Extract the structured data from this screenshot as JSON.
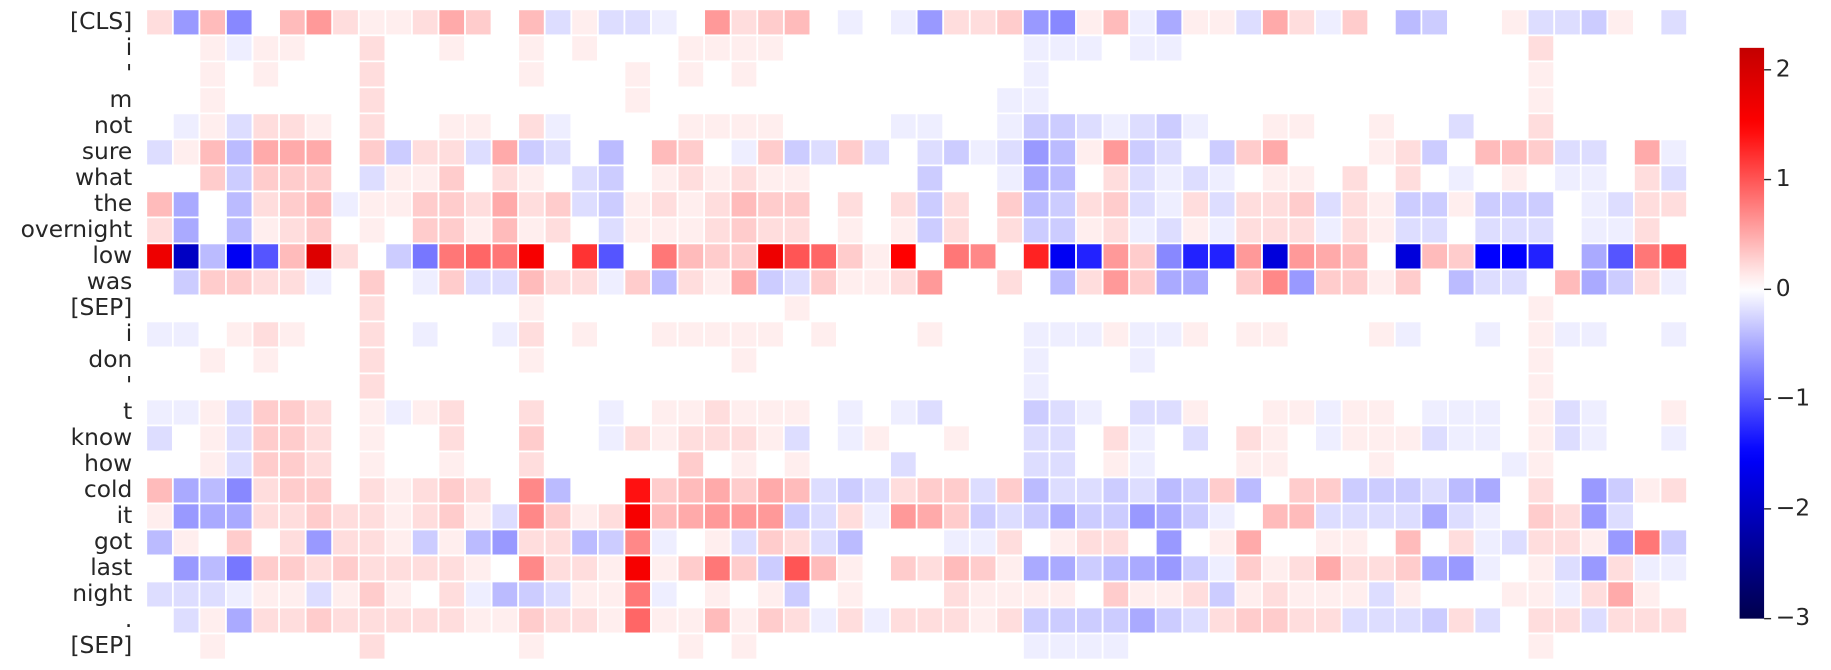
{
  "chart_data": {
    "type": "heatmap",
    "rows": [
      "[CLS]",
      "i",
      "'",
      "m",
      "not",
      "sure",
      "what",
      "the",
      "overnight",
      "low",
      "was",
      "[SEP]",
      "i",
      "don",
      "'",
      "t",
      "know",
      "how",
      "cold",
      "it",
      "got",
      "last",
      "night",
      ".",
      "[SEP]"
    ],
    "values": [
      [
        0.2,
        -0.6,
        0.4,
        -0.7,
        0,
        0.4,
        0.6,
        0.2,
        0.1,
        0.1,
        0.2,
        0.5,
        0.3,
        0,
        0.4,
        -0.2,
        0.1,
        -0.2,
        -0.2,
        -0.1,
        0,
        0.6,
        0.2,
        0.3,
        0.4,
        0,
        -0.1,
        0,
        -0.1,
        -0.6,
        0.2,
        0.2,
        0.3,
        -0.6,
        -0.7,
        0.1,
        0.4,
        -0.1,
        -0.5,
        0.1,
        0.1,
        -0.2,
        0.5,
        0.2,
        -0.1,
        0.3,
        0,
        -0.4,
        -0.3,
        0,
        0,
        0.1,
        -0.2,
        -0.2,
        -0.3,
        0.1,
        0,
        -0.2
      ],
      [
        0,
        0,
        0.1,
        -0.1,
        0.1,
        0.1,
        0,
        0,
        0.2,
        0,
        0,
        0.1,
        0,
        0,
        0.1,
        0,
        0.1,
        0,
        0,
        0,
        0.1,
        0.1,
        0.1,
        0.1,
        0,
        0,
        0,
        0,
        0,
        0,
        0,
        0,
        0,
        -0.1,
        -0.1,
        -0.1,
        0,
        -0.1,
        -0.1,
        0,
        0,
        0,
        0,
        0,
        0,
        0,
        0,
        0,
        0,
        0,
        0,
        0,
        0.2,
        0,
        0,
        0,
        0,
        0
      ],
      [
        0,
        0,
        0.1,
        0,
        0.1,
        0,
        0,
        0,
        0.2,
        0,
        0,
        0,
        0,
        0,
        0.1,
        0,
        0,
        0,
        0.1,
        0,
        0.1,
        0,
        0.1,
        0,
        0,
        0,
        0,
        0,
        0,
        0,
        0,
        0,
        0,
        -0.1,
        0,
        0,
        0,
        0,
        0,
        0,
        0,
        0,
        0,
        0,
        0,
        0,
        0,
        0,
        0,
        0,
        0,
        0,
        0.1,
        0,
        0,
        0,
        0,
        0
      ],
      [
        0,
        0,
        0.1,
        0,
        0,
        0,
        0,
        0,
        0.2,
        0,
        0,
        0,
        0,
        0,
        0,
        0,
        0,
        0,
        0.1,
        0,
        0,
        0,
        0,
        0,
        0,
        0,
        0,
        0,
        0,
        0,
        0,
        0,
        -0.1,
        -0.1,
        0,
        0,
        0,
        0,
        0,
        0,
        0,
        0,
        0,
        0,
        0,
        0,
        0,
        0,
        0,
        0,
        0,
        0,
        0.1,
        0,
        0,
        0,
        0,
        0
      ],
      [
        0,
        -0.1,
        0.1,
        -0.2,
        0.2,
        0.2,
        0.1,
        0,
        0.2,
        0,
        0,
        0.1,
        0.1,
        0,
        0.2,
        -0.1,
        0,
        0,
        0,
        0,
        0.1,
        0.1,
        0.1,
        0.1,
        0,
        0,
        0,
        0,
        -0.1,
        -0.1,
        0,
        0,
        -0.1,
        -0.3,
        -0.3,
        -0.2,
        -0.1,
        -0.2,
        -0.3,
        -0.1,
        0,
        0,
        0.1,
        0.1,
        0,
        0,
        0.1,
        0,
        0,
        -0.2,
        0,
        0,
        0.2,
        0,
        0,
        0,
        0,
        0
      ],
      [
        -0.2,
        0.1,
        0.4,
        -0.4,
        0.5,
        0.5,
        0.5,
        0,
        0.3,
        -0.3,
        0.2,
        0.2,
        -0.2,
        0.5,
        -0.3,
        -0.2,
        0,
        -0.4,
        0,
        0.4,
        0.3,
        0,
        -0.1,
        0.3,
        -0.3,
        -0.2,
        0.3,
        -0.2,
        0,
        -0.2,
        -0.3,
        -0.1,
        -0.2,
        -0.6,
        -0.4,
        0.1,
        0.6,
        -0.3,
        -0.2,
        0,
        -0.3,
        0.3,
        0.5,
        0,
        0,
        0,
        0.1,
        0.2,
        -0.3,
        0,
        0.4,
        0.4,
        0.3,
        -0.2,
        -0.2,
        0,
        0.5,
        -0.1
      ],
      [
        0,
        0,
        0.3,
        -0.3,
        0.3,
        0.3,
        0.3,
        0,
        -0.2,
        0.1,
        0.1,
        0.3,
        0,
        0.2,
        0.1,
        0,
        -0.2,
        -0.3,
        0,
        0.1,
        0.2,
        0.1,
        0.2,
        0.1,
        0.1,
        0,
        0,
        0,
        0,
        -0.3,
        0,
        0,
        -0.1,
        -0.5,
        -0.4,
        0,
        0.2,
        -0.2,
        -0.1,
        -0.2,
        -0.1,
        0,
        0.1,
        0.1,
        0,
        0.2,
        0,
        0.2,
        0,
        -0.1,
        0,
        0.1,
        0,
        -0.1,
        -0.1,
        0,
        0.2,
        -0.2
      ],
      [
        0.4,
        -0.5,
        0,
        -0.4,
        0.2,
        0.3,
        0.4,
        -0.1,
        0.1,
        0.1,
        0.3,
        0.3,
        0.2,
        0.5,
        0.2,
        0.3,
        -0.2,
        -0.3,
        0.1,
        0.2,
        0.1,
        0.2,
        0.4,
        0.3,
        0.3,
        0,
        0.2,
        0,
        0.2,
        -0.3,
        0.2,
        0,
        0.3,
        -0.4,
        -0.3,
        0.2,
        0.3,
        -0.2,
        -0.1,
        0.2,
        -0.2,
        0.2,
        0.2,
        0.3,
        -0.2,
        0.2,
        0.1,
        -0.3,
        -0.3,
        0.1,
        -0.3,
        -0.3,
        -0.3,
        0,
        -0.1,
        -0.2,
        0.2,
        0.2
      ],
      [
        0.2,
        -0.5,
        0,
        -0.4,
        0.1,
        0.2,
        0.3,
        0,
        0.1,
        0,
        0.3,
        0.3,
        0.1,
        0.4,
        0.1,
        0.2,
        0,
        -0.2,
        0.1,
        0.1,
        0.1,
        0.2,
        0.3,
        0.2,
        0.2,
        0,
        0.1,
        0,
        0.1,
        -0.3,
        0.2,
        0,
        0.2,
        -0.3,
        -0.3,
        0.1,
        0.2,
        -0.1,
        -0.2,
        0.1,
        -0.1,
        0.2,
        0.2,
        0.2,
        -0.1,
        0.2,
        0.1,
        -0.2,
        -0.2,
        0,
        -0.2,
        -0.2,
        -0.2,
        0,
        -0.1,
        -0.1,
        0.2,
        0
      ],
      [
        1.7,
        -2.0,
        -0.4,
        -1.6,
        -1.0,
        0.4,
        1.9,
        0.2,
        0,
        -0.3,
        -0.8,
        0.8,
        0.9,
        0.8,
        1.6,
        0,
        1.2,
        -1.0,
        0,
        0.8,
        0.4,
        0.3,
        0.3,
        1.7,
        1.0,
        0.9,
        0.3,
        0.1,
        1.5,
        0,
        0.8,
        0.7,
        0,
        1.3,
        -1.6,
        -1.3,
        0.6,
        0.3,
        -0.7,
        -1.3,
        -1.3,
        0.6,
        -1.8,
        0.6,
        0.5,
        0.4,
        0,
        -1.8,
        0.4,
        0.3,
        -1.5,
        -1.5,
        -1.3,
        0,
        -0.5,
        -1.0,
        0.8,
        1.0
      ],
      [
        0,
        -0.3,
        0.3,
        0.3,
        0.2,
        0.2,
        -0.1,
        0,
        0.3,
        0,
        -0.1,
        0.3,
        -0.2,
        -0.2,
        0.4,
        0.2,
        0.2,
        -0.1,
        0.3,
        -0.4,
        0.2,
        0.1,
        0.5,
        -0.3,
        -0.2,
        0.3,
        0.1,
        0.1,
        0.2,
        0.6,
        0,
        0,
        0.2,
        0,
        -0.4,
        0.2,
        0.6,
        0.3,
        -0.5,
        -0.5,
        0,
        0.3,
        0.7,
        -0.6,
        0.3,
        0.3,
        0.1,
        0.3,
        0,
        -0.4,
        -0.2,
        -0.2,
        0,
        0.4,
        -0.5,
        -0.3,
        0.2,
        -0.1
      ],
      [
        0,
        0,
        0,
        0,
        0,
        0,
        0,
        0,
        0.2,
        0,
        0,
        0,
        0,
        0,
        0.1,
        0,
        0,
        0,
        0,
        0,
        0,
        0,
        0,
        0,
        0.1,
        0,
        0,
        0,
        0,
        0,
        0,
        0,
        0,
        0,
        0,
        0,
        0,
        0,
        0,
        0,
        0,
        0,
        0,
        0,
        0,
        0,
        0,
        0,
        0,
        0,
        0,
        0,
        0.1,
        0,
        0,
        0,
        0,
        0
      ],
      [
        -0.1,
        -0.1,
        0,
        0.1,
        0.2,
        0.1,
        0,
        0,
        0.2,
        0,
        -0.1,
        0,
        0,
        -0.1,
        0.2,
        0,
        0.1,
        0,
        0,
        0.1,
        0.1,
        0.1,
        0.1,
        0.1,
        0,
        0.1,
        0,
        0,
        0,
        0.1,
        0,
        0,
        0,
        -0.1,
        -0.1,
        -0.1,
        0.1,
        -0.1,
        -0.1,
        0.1,
        0,
        0.1,
        0.1,
        0,
        0,
        0,
        0.1,
        -0.1,
        0,
        0,
        -0.1,
        0,
        0.1,
        -0.1,
        -0.1,
        0,
        0,
        -0.1
      ],
      [
        0,
        0,
        0.1,
        0,
        0.1,
        0,
        0,
        0,
        0.2,
        0,
        0,
        0,
        0,
        0,
        0.1,
        0,
        0,
        0,
        0,
        0,
        0,
        0,
        0.1,
        0,
        0,
        0,
        0,
        0,
        0,
        0,
        0,
        0,
        0,
        -0.1,
        0,
        0,
        0,
        -0.1,
        0,
        0,
        0,
        0,
        0,
        0,
        0,
        0,
        0,
        0,
        0,
        0,
        0,
        0,
        0.1,
        0,
        0,
        0,
        0,
        0
      ],
      [
        0,
        0,
        0,
        0,
        0,
        0,
        0,
        0,
        0.2,
        0,
        0,
        0,
        0,
        0,
        0,
        0,
        0,
        0,
        0,
        0,
        0,
        0,
        0,
        0,
        0,
        0,
        0,
        0,
        0,
        0,
        0,
        0,
        0,
        -0.1,
        0,
        0,
        0,
        0,
        0,
        0,
        0,
        0,
        0,
        0,
        0,
        0,
        0,
        0,
        0,
        0,
        0,
        0,
        0.1,
        0,
        0,
        0,
        0,
        0
      ],
      [
        -0.1,
        -0.1,
        0.1,
        -0.2,
        0.3,
        0.3,
        0.2,
        0,
        0.1,
        -0.1,
        0.1,
        0.2,
        0,
        0,
        0.2,
        0,
        0,
        -0.1,
        0,
        0.1,
        0.1,
        0.2,
        0.1,
        0.1,
        0.1,
        0,
        -0.1,
        0,
        -0.1,
        -0.2,
        0,
        0,
        0,
        -0.3,
        -0.2,
        -0.1,
        0,
        -0.2,
        -0.2,
        0.1,
        0,
        0,
        0.1,
        0.1,
        -0.1,
        0.1,
        0.1,
        0,
        -0.1,
        -0.1,
        -0.1,
        0,
        0.1,
        -0.2,
        -0.1,
        0,
        0,
        0.1
      ],
      [
        -0.2,
        0,
        0.1,
        -0.2,
        0.3,
        0.3,
        0.2,
        0,
        0.1,
        0,
        0,
        0.2,
        0,
        0,
        0.3,
        0,
        0,
        -0.1,
        0.2,
        0.1,
        0.2,
        0.2,
        0.2,
        0.1,
        -0.2,
        0,
        -0.1,
        0.1,
        0,
        0,
        0.1,
        0,
        0,
        -0.2,
        -0.2,
        0,
        0.2,
        -0.1,
        0,
        -0.2,
        0,
        0.2,
        0.1,
        0,
        -0.1,
        0.1,
        0.1,
        0.1,
        -0.2,
        -0.1,
        -0.1,
        0,
        0.1,
        -0.2,
        -0.1,
        0,
        0,
        -0.1
      ],
      [
        0,
        0,
        0.1,
        -0.2,
        0.3,
        0.3,
        0.2,
        0,
        0.1,
        0,
        0,
        0.1,
        0,
        0,
        0.2,
        0,
        0,
        0,
        0,
        0,
        0.3,
        0,
        0.1,
        0,
        0.1,
        0,
        0,
        0,
        -0.2,
        0,
        0,
        0,
        0,
        -0.2,
        -0.2,
        0,
        0.1,
        -0.1,
        0,
        0,
        0,
        0.1,
        0.1,
        0,
        0,
        0,
        0.1,
        0,
        0,
        0,
        0,
        -0.1,
        0.1,
        0,
        0,
        0,
        0,
        0
      ],
      [
        0.4,
        -0.5,
        -0.4,
        -0.7,
        0.2,
        0.3,
        0.3,
        0,
        0.2,
        0.1,
        0.2,
        0.3,
        0.2,
        0,
        0.7,
        -0.4,
        0,
        0,
        1.4,
        0.3,
        0.4,
        0.5,
        0.3,
        0.5,
        0.4,
        -0.2,
        -0.3,
        -0.2,
        0.2,
        0.3,
        0.3,
        -0.2,
        0.3,
        -0.4,
        -0.2,
        -0.2,
        -0.3,
        -0.2,
        -0.4,
        -0.3,
        0.3,
        -0.4,
        0,
        0.3,
        0.3,
        -0.3,
        -0.3,
        -0.3,
        -0.2,
        -0.4,
        -0.5,
        0,
        0.2,
        0,
        -0.6,
        -0.3,
        0.1,
        0.2
      ],
      [
        0.1,
        -0.6,
        -0.5,
        -0.5,
        0.2,
        0.2,
        0.3,
        0.2,
        0.2,
        0.1,
        0.2,
        0.3,
        0.1,
        -0.2,
        0.7,
        0.3,
        0.1,
        0.2,
        1.6,
        0.4,
        0.5,
        0.6,
        0.6,
        0.6,
        -0.3,
        -0.2,
        0.2,
        -0.1,
        0.6,
        0.5,
        0.3,
        -0.3,
        -0.2,
        -0.3,
        -0.5,
        -0.3,
        -0.3,
        -0.6,
        -0.5,
        -0.3,
        -0.1,
        0,
        0.4,
        0.4,
        -0.2,
        -0.2,
        -0.2,
        -0.2,
        -0.5,
        -0.2,
        -0.1,
        0,
        0.3,
        0.2,
        -0.6,
        -0.2,
        0,
        0
      ],
      [
        -0.4,
        0.1,
        0,
        0.3,
        0,
        0.2,
        -0.6,
        0.2,
        0.2,
        0.1,
        -0.3,
        0.1,
        -0.4,
        -0.6,
        0.2,
        0.2,
        -0.4,
        -0.3,
        0.7,
        -0.1,
        0,
        0.1,
        -0.2,
        0.3,
        0.2,
        -0.2,
        -0.4,
        0,
        0,
        0,
        -0.1,
        -0.1,
        0.2,
        0,
        0.1,
        0.2,
        0.2,
        0,
        -0.6,
        0,
        0.1,
        0.5,
        0,
        0,
        0.1,
        0.1,
        0,
        0.4,
        0,
        0.2,
        -0.1,
        -0.2,
        0.2,
        0.2,
        0.1,
        -0.6,
        0.8,
        -0.3
      ],
      [
        0,
        -0.6,
        -0.4,
        -0.8,
        0.3,
        0.3,
        0.2,
        0.3,
        0.2,
        0.2,
        0.2,
        0.2,
        0.1,
        0,
        0.7,
        0.2,
        0.2,
        0.1,
        1.6,
        0.1,
        0.3,
        0.8,
        0.3,
        -0.3,
        1.0,
        0.4,
        0.1,
        0,
        0.3,
        0.2,
        0.4,
        0.3,
        0.1,
        -0.5,
        -0.5,
        -0.3,
        -0.4,
        -0.5,
        -0.6,
        -0.3,
        -0.1,
        0.3,
        0.1,
        0.2,
        0.5,
        0.2,
        0.2,
        0.3,
        -0.5,
        -0.6,
        -0.1,
        0,
        0.1,
        -0.2,
        -0.6,
        0.2,
        -0.1,
        -0.1
      ],
      [
        -0.2,
        -0.2,
        -0.2,
        -0.1,
        0.1,
        0.1,
        -0.2,
        0.1,
        0.3,
        0.1,
        0,
        0.2,
        -0.1,
        -0.4,
        -0.3,
        -0.2,
        0.1,
        0.1,
        0.8,
        -0.1,
        0,
        0.1,
        0,
        0.1,
        -0.3,
        0,
        0.1,
        0,
        0,
        0,
        0.2,
        0.1,
        0.1,
        0.1,
        0.1,
        0,
        0.3,
        0.1,
        0.1,
        0.2,
        -0.3,
        0.1,
        0.2,
        0.1,
        0.1,
        0.1,
        -0.2,
        0.1,
        0,
        0,
        0,
        0.1,
        0.1,
        -0.1,
        0.2,
        0.5,
        0.1,
        0
      ],
      [
        0,
        -0.2,
        0.1,
        -0.5,
        0.2,
        0.2,
        0.3,
        0.2,
        0.2,
        0.2,
        0.2,
        0.2,
        0.1,
        0.1,
        0.3,
        0.2,
        0.2,
        0.1,
        0.9,
        0.1,
        0.1,
        0.4,
        0.1,
        0.3,
        0.2,
        -0.1,
        0.2,
        -0.1,
        0.2,
        0.2,
        0.2,
        0.1,
        0.2,
        -0.3,
        -0.3,
        -0.3,
        -0.3,
        -0.5,
        -0.3,
        -0.2,
        0.2,
        0.3,
        0.3,
        0.2,
        0.2,
        -0.2,
        -0.2,
        -0.2,
        -0.3,
        0.2,
        -0.2,
        0,
        0.2,
        0.2,
        -0.2,
        0.2,
        0.2,
        0.2
      ],
      [
        0,
        0,
        0.1,
        0,
        0,
        0,
        0,
        0,
        0.2,
        0,
        0,
        0,
        0,
        0,
        0.1,
        0,
        0,
        0,
        0,
        0,
        0.1,
        0,
        0.1,
        0,
        0,
        0,
        0,
        0,
        0,
        0,
        0,
        0,
        0,
        -0.1,
        -0.1,
        -0.1,
        -0.1,
        0,
        0,
        0,
        0,
        0,
        0,
        0,
        0,
        0,
        0,
        0,
        0,
        0,
        0,
        0,
        0.1,
        0,
        0,
        0,
        0,
        0
      ]
    ],
    "colormap": "seismic",
    "zlim": [
      -3,
      2.2
    ],
    "zticks": [
      {
        "value": -3,
        "label": "−3"
      },
      {
        "value": -2,
        "label": "−2"
      },
      {
        "value": -1,
        "label": "−1"
      },
      0,
      1,
      2
    ]
  }
}
